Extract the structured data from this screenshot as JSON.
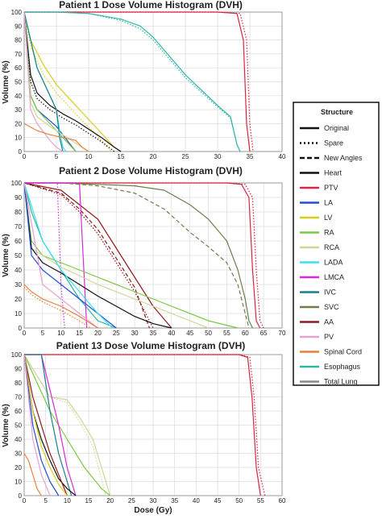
{
  "figure": {
    "xlabel": "Dose (Gy)",
    "ylabel": "Volume (%)"
  },
  "legend": {
    "title": "Structure",
    "linestyles": [
      {
        "label": "Original",
        "dash": "solid"
      },
      {
        "label": "Spare",
        "dash": "dotted"
      },
      {
        "label": "New Angles",
        "dash": "dashed"
      }
    ],
    "structures": [
      {
        "label": "Heart",
        "color": "#111111"
      },
      {
        "label": "PTV",
        "color": "#d7263d"
      },
      {
        "label": "LA",
        "color": "#1f4fd6"
      },
      {
        "label": "LV",
        "color": "#d8cc1c"
      },
      {
        "label": "RA",
        "color": "#7bc843"
      },
      {
        "label": "RCA",
        "color": "#cfd69a"
      },
      {
        "label": "LADA",
        "color": "#39e3f0"
      },
      {
        "label": "LMCA",
        "color": "#d62bd6"
      },
      {
        "label": "IVC",
        "color": "#1b7e8c"
      },
      {
        "label": "SVC",
        "color": "#6f7d4a"
      },
      {
        "label": "AA",
        "color": "#8e1a1a"
      },
      {
        "label": "PV",
        "color": "#e7a1d0"
      },
      {
        "label": "Spinal Cord",
        "color": "#e8803a"
      },
      {
        "label": "Esophagus",
        "color": "#2fb5a7"
      },
      {
        "label": "Total Lung",
        "color": "#8a8a8a"
      }
    ]
  },
  "chart_data": [
    {
      "type": "line",
      "title": "Patient 1 Dose Volume Histogram (DVH)",
      "xlim": [
        0,
        40
      ],
      "ylim": [
        0,
        100
      ],
      "xticks": [
        0,
        5,
        10,
        15,
        20,
        25,
        30,
        35,
        40
      ],
      "yticks": [
        0,
        10,
        20,
        30,
        40,
        50,
        60,
        70,
        80,
        90,
        100
      ],
      "series": [
        {
          "structure": "PTV",
          "dash": "solid",
          "x": [
            0,
            30,
            33,
            34,
            34.5,
            35
          ],
          "y": [
            100,
            100,
            99,
            80,
            20,
            0
          ]
        },
        {
          "structure": "PTV",
          "dash": "dotted",
          "x": [
            0,
            30,
            33.5,
            34.5,
            35,
            35.5
          ],
          "y": [
            100,
            100,
            99,
            80,
            20,
            0
          ]
        },
        {
          "structure": "Esophagus",
          "dash": "solid",
          "x": [
            0,
            5,
            10,
            15,
            18,
            20,
            25,
            30,
            32,
            33,
            33.5
          ],
          "y": [
            100,
            100,
            99,
            95,
            90,
            82,
            55,
            33,
            25,
            5,
            0
          ]
        },
        {
          "structure": "Esophagus",
          "dash": "dotted",
          "x": [
            0,
            5,
            10,
            15,
            18,
            20,
            25,
            30,
            32,
            33,
            33.5
          ],
          "y": [
            100,
            100,
            99,
            94,
            88,
            80,
            53,
            32,
            24,
            5,
            0
          ]
        },
        {
          "structure": "LV",
          "dash": "solid",
          "x": [
            0,
            1,
            3,
            5,
            7,
            9,
            11,
            13,
            14,
            15
          ],
          "y": [
            100,
            80,
            62,
            48,
            38,
            28,
            18,
            8,
            3,
            0
          ]
        },
        {
          "structure": "LV",
          "dash": "dotted",
          "x": [
            0,
            1,
            3,
            5,
            7,
            9,
            11,
            12.5,
            13.5
          ],
          "y": [
            100,
            75,
            55,
            42,
            32,
            22,
            13,
            5,
            0
          ]
        },
        {
          "structure": "Heart",
          "dash": "solid",
          "x": [
            0,
            1,
            2,
            4,
            6,
            8,
            10,
            12,
            14,
            15
          ],
          "y": [
            100,
            55,
            42,
            33,
            27,
            22,
            16,
            10,
            3,
            0
          ]
        },
        {
          "structure": "Heart",
          "dash": "dotted",
          "x": [
            0,
            1,
            2,
            4,
            6,
            8,
            10,
            12,
            14
          ],
          "y": [
            100,
            50,
            38,
            30,
            24,
            19,
            13,
            7,
            0
          ]
        },
        {
          "structure": "LA",
          "dash": "solid",
          "x": [
            0,
            1,
            2,
            3,
            4,
            5,
            6,
            7,
            8
          ],
          "y": [
            100,
            40,
            30,
            26,
            22,
            18,
            12,
            6,
            0
          ]
        },
        {
          "structure": "RA",
          "dash": "solid",
          "x": [
            0,
            1,
            2,
            3,
            4,
            5,
            6,
            7,
            8
          ],
          "y": [
            100,
            40,
            30,
            25,
            20,
            15,
            10,
            5,
            0
          ]
        },
        {
          "structure": "LADA",
          "dash": "solid",
          "x": [
            0,
            2,
            4,
            5,
            5.5,
            6,
            6.5
          ],
          "y": [
            100,
            60,
            40,
            30,
            15,
            3,
            0
          ]
        },
        {
          "structure": "IVC",
          "dash": "solid",
          "x": [
            0,
            2,
            4,
            5,
            5.5,
            6
          ],
          "y": [
            100,
            60,
            40,
            30,
            10,
            0
          ]
        },
        {
          "structure": "RCA",
          "dash": "solid",
          "x": [
            0,
            1,
            2,
            4,
            6,
            8,
            10
          ],
          "y": [
            100,
            35,
            25,
            18,
            12,
            6,
            0
          ]
        },
        {
          "structure": "PV",
          "dash": "solid",
          "x": [
            0,
            1,
            2,
            3,
            4,
            5,
            6
          ],
          "y": [
            100,
            30,
            20,
            14,
            8,
            3,
            0
          ]
        },
        {
          "structure": "Spinal Cord",
          "dash": "solid",
          "x": [
            0,
            2,
            4,
            6,
            8,
            9,
            10
          ],
          "y": [
            20,
            15,
            12,
            10,
            8,
            3,
            0
          ]
        }
      ]
    },
    {
      "type": "line",
      "title": "Patient 2 Dose Volume Histogram (DVH)",
      "xlim": [
        0,
        70
      ],
      "ylim": [
        0,
        100
      ],
      "xticks": [
        0,
        5,
        10,
        15,
        20,
        25,
        30,
        35,
        40,
        45,
        50,
        55,
        60,
        65,
        70
      ],
      "yticks": [
        0,
        10,
        20,
        30,
        40,
        50,
        60,
        70,
        80,
        90,
        100
      ],
      "series": [
        {
          "structure": "PTV",
          "dash": "solid",
          "x": [
            0,
            55,
            59,
            61,
            62,
            63,
            64
          ],
          "y": [
            100,
            100,
            99,
            90,
            40,
            5,
            0
          ]
        },
        {
          "structure": "PTV",
          "dash": "dotted",
          "x": [
            0,
            56,
            60,
            62,
            63,
            64,
            65
          ],
          "y": [
            100,
            100,
            99,
            90,
            40,
            5,
            0
          ]
        },
        {
          "structure": "SVC",
          "dash": "solid",
          "x": [
            0,
            10,
            20,
            30,
            38,
            45,
            50,
            55,
            58,
            60,
            61,
            62
          ],
          "y": [
            100,
            100,
            99,
            98,
            95,
            85,
            75,
            60,
            40,
            20,
            5,
            0
          ]
        },
        {
          "structure": "SVC",
          "dash": "dashed",
          "x": [
            0,
            10,
            20,
            30,
            38,
            45,
            50,
            55,
            58,
            60,
            61
          ],
          "y": [
            100,
            100,
            98,
            93,
            82,
            66,
            56,
            45,
            30,
            10,
            0
          ]
        },
        {
          "structure": "Esophagus",
          "dash": "solid",
          "x": [
            0,
            2,
            5,
            10,
            15,
            20,
            25
          ],
          "y": [
            100,
            80,
            60,
            40,
            20,
            5,
            0
          ]
        },
        {
          "structure": "AA",
          "dash": "solid",
          "x": [
            0,
            10,
            15,
            20,
            25,
            30,
            35,
            40
          ],
          "y": [
            100,
            95,
            85,
            75,
            55,
            35,
            15,
            0
          ]
        },
        {
          "structure": "AA",
          "dash": "dotted",
          "x": [
            0,
            10,
            15,
            20,
            25,
            30,
            35
          ],
          "y": [
            100,
            92,
            80,
            65,
            45,
            25,
            0
          ]
        },
        {
          "structure": "AA",
          "dash": "dashed",
          "x": [
            0,
            10,
            15,
            20,
            25,
            30,
            34
          ],
          "y": [
            100,
            93,
            82,
            68,
            48,
            28,
            0
          ]
        },
        {
          "structure": "LMCA",
          "dash": "solid",
          "x": [
            0,
            15,
            16,
            17
          ],
          "y": [
            100,
            100,
            50,
            0
          ]
        },
        {
          "structure": "LMCA",
          "dash": "dotted",
          "x": [
            0,
            9,
            10,
            11
          ],
          "y": [
            100,
            100,
            30,
            0
          ]
        },
        {
          "structure": "RA",
          "dash": "solid",
          "x": [
            0,
            2,
            5,
            10,
            20,
            30,
            40,
            50,
            58
          ],
          "y": [
            100,
            60,
            50,
            45,
            35,
            25,
            15,
            5,
            0
          ]
        },
        {
          "structure": "RCA",
          "dash": "solid",
          "x": [
            0,
            2,
            5,
            10,
            20,
            30,
            40,
            50
          ],
          "y": [
            100,
            55,
            50,
            42,
            30,
            20,
            10,
            0
          ]
        },
        {
          "structure": "Heart",
          "dash": "solid",
          "x": [
            0,
            2,
            5,
            10,
            15,
            20,
            25,
            30,
            35,
            40
          ],
          "y": [
            100,
            55,
            45,
            38,
            30,
            22,
            15,
            8,
            3,
            0
          ]
        },
        {
          "structure": "LA",
          "dash": "solid",
          "x": [
            0,
            2,
            5,
            10,
            15,
            20,
            25
          ],
          "y": [
            100,
            50,
            40,
            30,
            20,
            10,
            0
          ]
        },
        {
          "structure": "LADA",
          "dash": "solid",
          "x": [
            0,
            5,
            10,
            15,
            20,
            24
          ],
          "y": [
            100,
            60,
            40,
            25,
            10,
            0
          ]
        },
        {
          "structure": "PV",
          "dash": "solid",
          "x": [
            0,
            5,
            10,
            15,
            20
          ],
          "y": [
            100,
            30,
            20,
            10,
            0
          ]
        },
        {
          "structure": "Spinal Cord",
          "dash": "solid",
          "x": [
            0,
            2,
            5,
            10,
            15,
            20
          ],
          "y": [
            30,
            25,
            20,
            15,
            8,
            0
          ]
        },
        {
          "structure": "Spinal Cord",
          "dash": "dotted",
          "x": [
            0,
            2,
            5,
            10,
            15,
            18
          ],
          "y": [
            28,
            23,
            18,
            12,
            5,
            0
          ]
        }
      ]
    },
    {
      "type": "line",
      "title": "Patient 13 Dose Volume Histogram (DVH)",
      "xlim": [
        0,
        60
      ],
      "ylim": [
        0,
        100
      ],
      "xticks": [
        0,
        5,
        10,
        15,
        20,
        25,
        30,
        35,
        40,
        45,
        50,
        55,
        60
      ],
      "yticks": [
        0,
        10,
        20,
        30,
        40,
        50,
        60,
        70,
        80,
        90,
        100
      ],
      "series": [
        {
          "structure": "PTV",
          "dash": "solid",
          "x": [
            0,
            50,
            52,
            53,
            54,
            55
          ],
          "y": [
            100,
            100,
            98,
            70,
            20,
            0
          ]
        },
        {
          "structure": "PTV",
          "dash": "dotted",
          "x": [
            0,
            50.5,
            52.5,
            53.5,
            54.5,
            56
          ],
          "y": [
            100,
            100,
            98,
            70,
            20,
            0
          ]
        },
        {
          "structure": "RCA",
          "dash": "solid",
          "x": [
            0,
            3,
            6,
            10,
            13,
            16,
            18,
            20
          ],
          "y": [
            100,
            85,
            70,
            68,
            55,
            40,
            20,
            0
          ]
        },
        {
          "structure": "RCA",
          "dash": "dotted",
          "x": [
            0,
            3,
            6,
            10,
            13,
            16,
            19
          ],
          "y": [
            100,
            85,
            70,
            66,
            52,
            35,
            0
          ]
        },
        {
          "structure": "RA",
          "dash": "solid",
          "x": [
            0,
            3,
            6,
            10,
            14,
            18,
            20
          ],
          "y": [
            100,
            80,
            60,
            40,
            20,
            5,
            0
          ]
        },
        {
          "structure": "LMCA",
          "dash": "solid",
          "x": [
            0,
            4,
            6,
            8,
            10,
            12
          ],
          "y": [
            100,
            100,
            75,
            50,
            20,
            0
          ]
        },
        {
          "structure": "IVC",
          "dash": "solid",
          "x": [
            0,
            4,
            6,
            8,
            10,
            11
          ],
          "y": [
            100,
            100,
            60,
            30,
            10,
            0
          ]
        },
        {
          "structure": "Heart",
          "dash": "solid",
          "x": [
            0,
            2,
            4,
            6,
            8,
            10,
            12
          ],
          "y": [
            100,
            60,
            40,
            25,
            12,
            5,
            0
          ]
        },
        {
          "structure": "AA",
          "dash": "solid",
          "x": [
            0,
            2,
            4,
            6,
            8,
            10
          ],
          "y": [
            100,
            70,
            50,
            30,
            15,
            0
          ]
        },
        {
          "structure": "LV",
          "dash": "solid",
          "x": [
            0,
            2,
            4,
            6,
            8,
            10
          ],
          "y": [
            100,
            60,
            35,
            20,
            8,
            0
          ]
        },
        {
          "structure": "LA",
          "dash": "solid",
          "x": [
            0,
            2,
            4,
            6,
            8
          ],
          "y": [
            100,
            50,
            25,
            10,
            0
          ]
        },
        {
          "structure": "Spinal Cord",
          "dash": "solid",
          "x": [
            0,
            1,
            2,
            3,
            4
          ],
          "y": [
            30,
            25,
            15,
            5,
            0
          ]
        },
        {
          "structure": "PV",
          "dash": "solid",
          "x": [
            0,
            2,
            4,
            6
          ],
          "y": [
            100,
            40,
            15,
            0
          ]
        }
      ]
    }
  ]
}
